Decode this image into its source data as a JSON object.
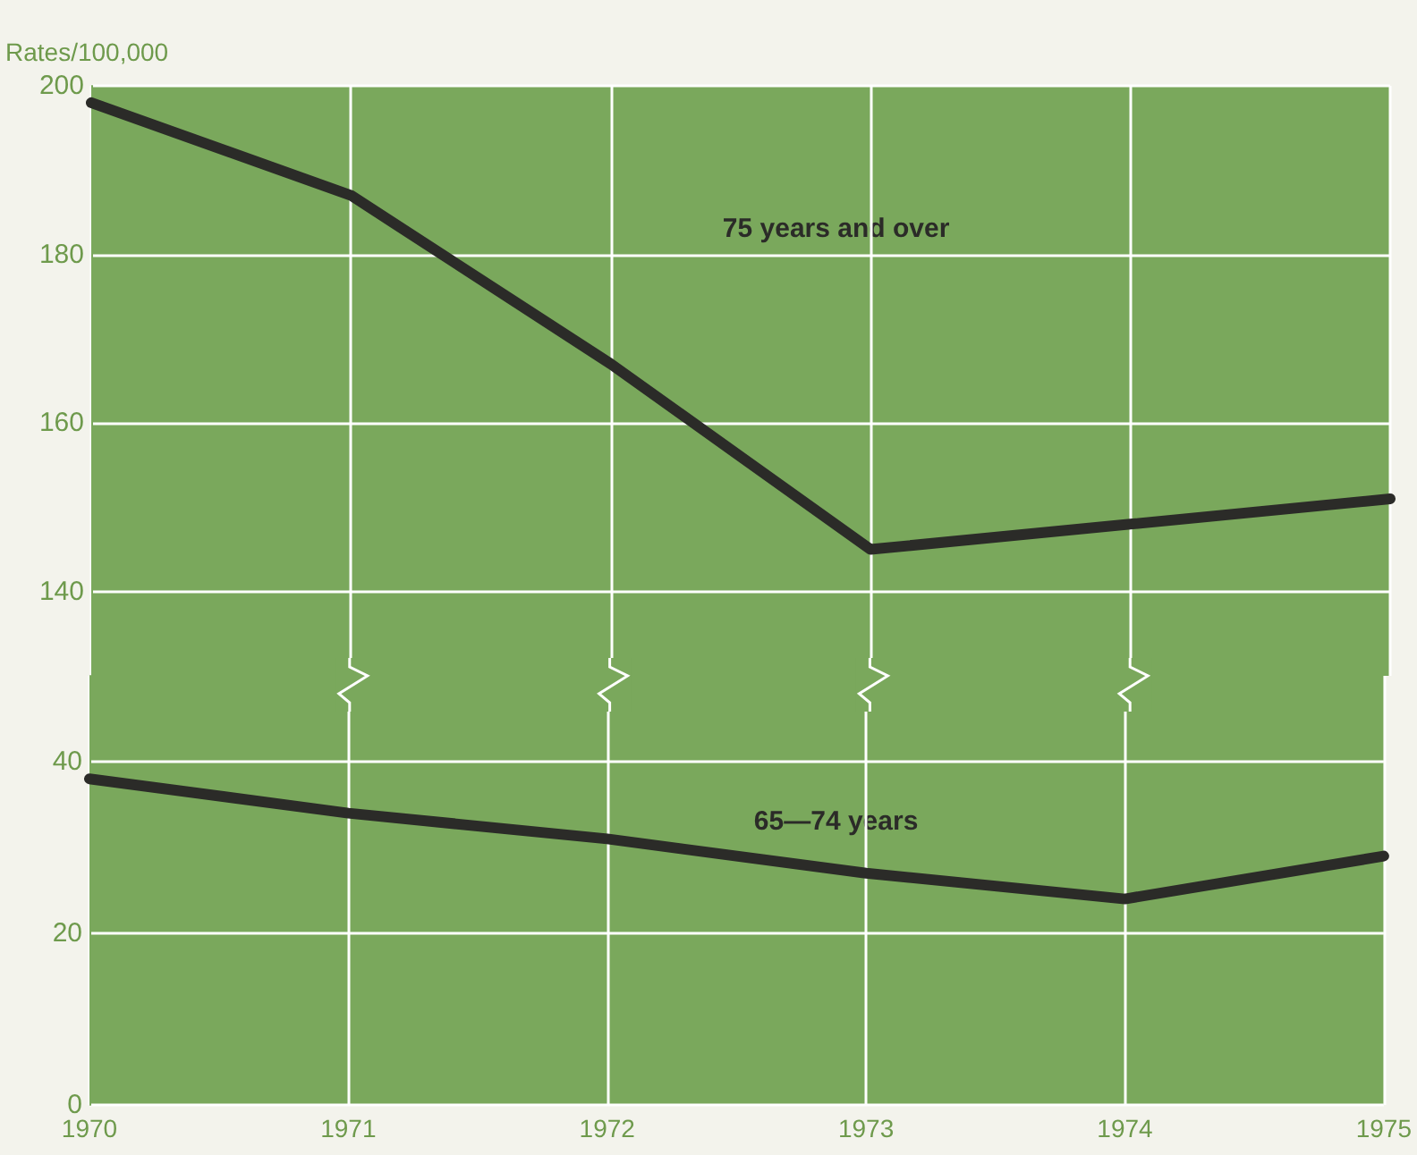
{
  "chart_data": [
    {
      "type": "line",
      "ylabel": "Rates/100,000",
      "categories": [
        "1970",
        "1971",
        "1972",
        "1973",
        "1974",
        "1975"
      ],
      "ylim": [
        130,
        200
      ],
      "yticks": [
        140,
        160,
        180,
        200
      ],
      "grid": true,
      "tick_labels": "y",
      "series": [
        {
          "name": "75 years and over",
          "color": "#2b2b28",
          "values": [
            198,
            187,
            167,
            145,
            148,
            151
          ]
        }
      ]
    },
    {
      "type": "line",
      "categories": [
        "1970",
        "1971",
        "1972",
        "1973",
        "1974",
        "1975"
      ],
      "ylim": [
        0,
        50
      ],
      "yticks": [
        0,
        20,
        40
      ],
      "grid": true,
      "series": [
        {
          "name": "65—74 years",
          "color": "#2b2b28",
          "values": [
            38,
            34,
            31,
            27,
            24,
            29
          ]
        }
      ]
    }
  ]
}
